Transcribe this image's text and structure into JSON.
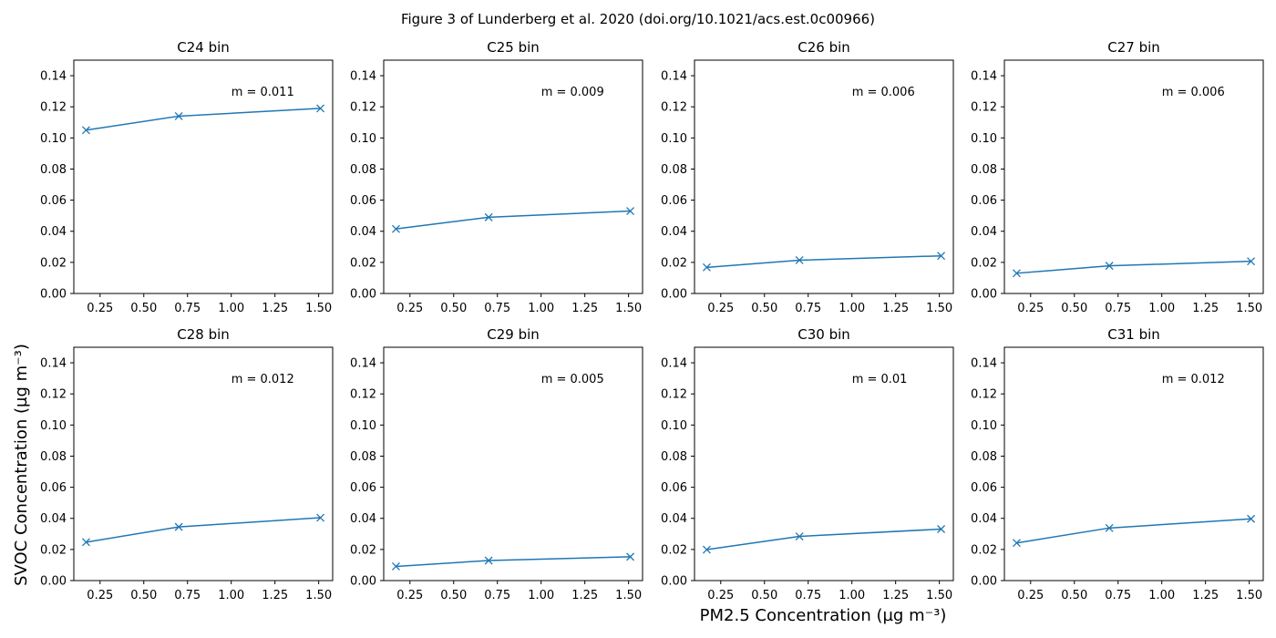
{
  "figure": {
    "suptitle": "Figure 3 of Lunderberg et al. 2020 (doi.org/10.1021/acs.est.0c00966)",
    "xlabel": "PM2.5 Concentration (µg m⁻³)",
    "ylabel": "SVOC Concentration (µg m⁻³)"
  },
  "chart_data": [
    {
      "type": "line",
      "title": "C24 bin",
      "x": [
        0.17,
        0.7,
        1.51
      ],
      "y": [
        0.105,
        0.114,
        0.119
      ],
      "annotation": "m = 0.011",
      "xlim": [
        0.1,
        1.58
      ],
      "ylim": [
        0,
        0.15
      ],
      "xticks": [
        "0.25",
        "0.50",
        "0.75",
        "1.00",
        "1.25",
        "1.50"
      ],
      "yticks": [
        "0.00",
        "0.02",
        "0.04",
        "0.06",
        "0.08",
        "0.10",
        "0.12",
        "0.14"
      ],
      "marker": "x",
      "color": "#1f77b4"
    },
    {
      "type": "line",
      "title": "C25 bin",
      "x": [
        0.17,
        0.7,
        1.51
      ],
      "y": [
        0.0415,
        0.049,
        0.053
      ],
      "annotation": "m = 0.009",
      "xlim": [
        0.1,
        1.58
      ],
      "ylim": [
        0,
        0.15
      ],
      "xticks": [
        "0.25",
        "0.50",
        "0.75",
        "1.00",
        "1.25",
        "1.50"
      ],
      "yticks": [
        "0.00",
        "0.02",
        "0.04",
        "0.06",
        "0.08",
        "0.10",
        "0.12",
        "0.14"
      ],
      "marker": "x",
      "color": "#1f77b4"
    },
    {
      "type": "line",
      "title": "C26 bin",
      "x": [
        0.17,
        0.7,
        1.51
      ],
      "y": [
        0.0168,
        0.0214,
        0.0242
      ],
      "annotation": "m = 0.006",
      "xlim": [
        0.1,
        1.58
      ],
      "ylim": [
        0,
        0.15
      ],
      "xticks": [
        "0.25",
        "0.50",
        "0.75",
        "1.00",
        "1.25",
        "1.50"
      ],
      "yticks": [
        "0.00",
        "0.02",
        "0.04",
        "0.06",
        "0.08",
        "0.10",
        "0.12",
        "0.14"
      ],
      "marker": "x",
      "color": "#1f77b4"
    },
    {
      "type": "line",
      "title": "C27 bin",
      "x": [
        0.17,
        0.7,
        1.51
      ],
      "y": [
        0.013,
        0.0178,
        0.0207
      ],
      "annotation": "m = 0.006",
      "xlim": [
        0.1,
        1.58
      ],
      "ylim": [
        0,
        0.15
      ],
      "xticks": [
        "0.25",
        "0.50",
        "0.75",
        "1.00",
        "1.25",
        "1.50"
      ],
      "yticks": [
        "0.00",
        "0.02",
        "0.04",
        "0.06",
        "0.08",
        "0.10",
        "0.12",
        "0.14"
      ],
      "marker": "x",
      "color": "#1f77b4"
    },
    {
      "type": "line",
      "title": "C28 bin",
      "x": [
        0.17,
        0.7,
        1.51
      ],
      "y": [
        0.0247,
        0.0345,
        0.0404
      ],
      "annotation": "m = 0.012",
      "xlim": [
        0.1,
        1.58
      ],
      "ylim": [
        0,
        0.15
      ],
      "xticks": [
        "0.25",
        "0.50",
        "0.75",
        "1.00",
        "1.25",
        "1.50"
      ],
      "yticks": [
        "0.00",
        "0.02",
        "0.04",
        "0.06",
        "0.08",
        "0.10",
        "0.12",
        "0.14"
      ],
      "marker": "x",
      "color": "#1f77b4"
    },
    {
      "type": "line",
      "title": "C29 bin",
      "x": [
        0.17,
        0.7,
        1.51
      ],
      "y": [
        0.0091,
        0.0129,
        0.0153
      ],
      "annotation": "m = 0.005",
      "xlim": [
        0.1,
        1.58
      ],
      "ylim": [
        0,
        0.15
      ],
      "xticks": [
        "0.25",
        "0.50",
        "0.75",
        "1.00",
        "1.25",
        "1.50"
      ],
      "yticks": [
        "0.00",
        "0.02",
        "0.04",
        "0.06",
        "0.08",
        "0.10",
        "0.12",
        "0.14"
      ],
      "marker": "x",
      "color": "#1f77b4"
    },
    {
      "type": "line",
      "title": "C30 bin",
      "x": [
        0.17,
        0.7,
        1.51
      ],
      "y": [
        0.0199,
        0.0284,
        0.0331
      ],
      "annotation": "m = 0.01",
      "xlim": [
        0.1,
        1.58
      ],
      "ylim": [
        0,
        0.15
      ],
      "xticks": [
        "0.25",
        "0.50",
        "0.75",
        "1.00",
        "1.25",
        "1.50"
      ],
      "yticks": [
        "0.00",
        "0.02",
        "0.04",
        "0.06",
        "0.08",
        "0.10",
        "0.12",
        "0.14"
      ],
      "marker": "x",
      "color": "#1f77b4"
    },
    {
      "type": "line",
      "title": "C31 bin",
      "x": [
        0.17,
        0.7,
        1.51
      ],
      "y": [
        0.0242,
        0.0338,
        0.0397
      ],
      "annotation": "m = 0.012",
      "xlim": [
        0.1,
        1.58
      ],
      "ylim": [
        0,
        0.15
      ],
      "xticks": [
        "0.25",
        "0.50",
        "0.75",
        "1.00",
        "1.25",
        "1.50"
      ],
      "yticks": [
        "0.00",
        "0.02",
        "0.04",
        "0.06",
        "0.08",
        "0.10",
        "0.12",
        "0.14"
      ],
      "marker": "x",
      "color": "#1f77b4"
    }
  ]
}
